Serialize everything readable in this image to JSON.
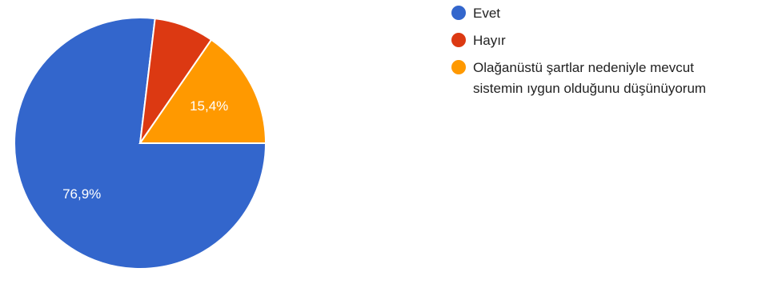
{
  "chart_data": {
    "type": "pie",
    "slices": [
      {
        "label": "Evet",
        "value": 76.9,
        "display": "76,9%",
        "color": "#3366cc"
      },
      {
        "label": "Hayır",
        "value": 7.7,
        "display": "",
        "color": "#dc3912"
      },
      {
        "label": "Olağanüstü şartlar nedeniyle mevcut\nsistemin ıygun olduğunu düşünüyorum",
        "value": 15.4,
        "display": "15,4%",
        "color": "#ff9900"
      }
    ],
    "legend_position": "right"
  }
}
